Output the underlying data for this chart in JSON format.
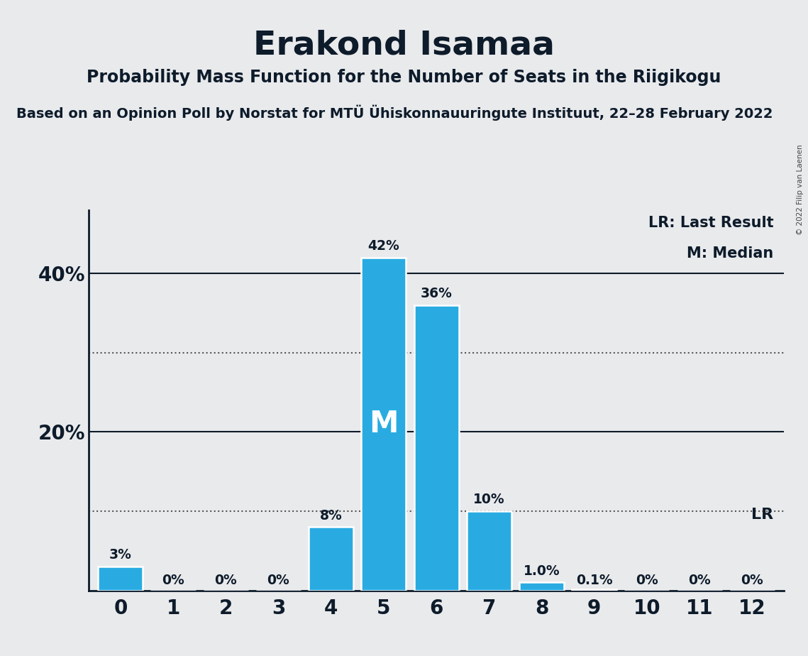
{
  "title": "Erakond Isamaa",
  "subtitle": "Probability Mass Function for the Number of Seats in the Riigikogu",
  "subsubtitle": "Based on an Opinion Poll by Norstat for MTÜ Ühiskonnauuringute Instituut, 22–28 February 2022",
  "copyright": "© 2022 Filip van Laenen",
  "x_values": [
    0,
    1,
    2,
    3,
    4,
    5,
    6,
    7,
    8,
    9,
    10,
    11,
    12
  ],
  "y_values": [
    0.03,
    0.0,
    0.0,
    0.0,
    0.08,
    0.42,
    0.36,
    0.1,
    0.01,
    0.001,
    0.0,
    0.0,
    0.0
  ],
  "bar_labels": [
    "3%",
    "0%",
    "0%",
    "0%",
    "8%",
    "42%",
    "36%",
    "10%",
    "1.0%",
    "0.1%",
    "0%",
    "0%",
    "0%"
  ],
  "bar_color": "#29ABE2",
  "background_color": "#e9eaec",
  "median_bar": 5,
  "lr_bar": 12,
  "lr_label": "LR",
  "median_label": "M",
  "yticks": [
    0.0,
    0.2,
    0.4
  ],
  "ytick_labels": [
    "",
    "20%",
    "40%"
  ],
  "ylim": [
    0,
    0.48
  ],
  "dotted_lines": [
    0.1,
    0.3
  ],
  "legend_lr": "LR: Last Result",
  "legend_m": "M: Median",
  "title_fontsize": 34,
  "subtitle_fontsize": 17,
  "subsubtitle_fontsize": 14,
  "text_color": "#0d1b2a"
}
